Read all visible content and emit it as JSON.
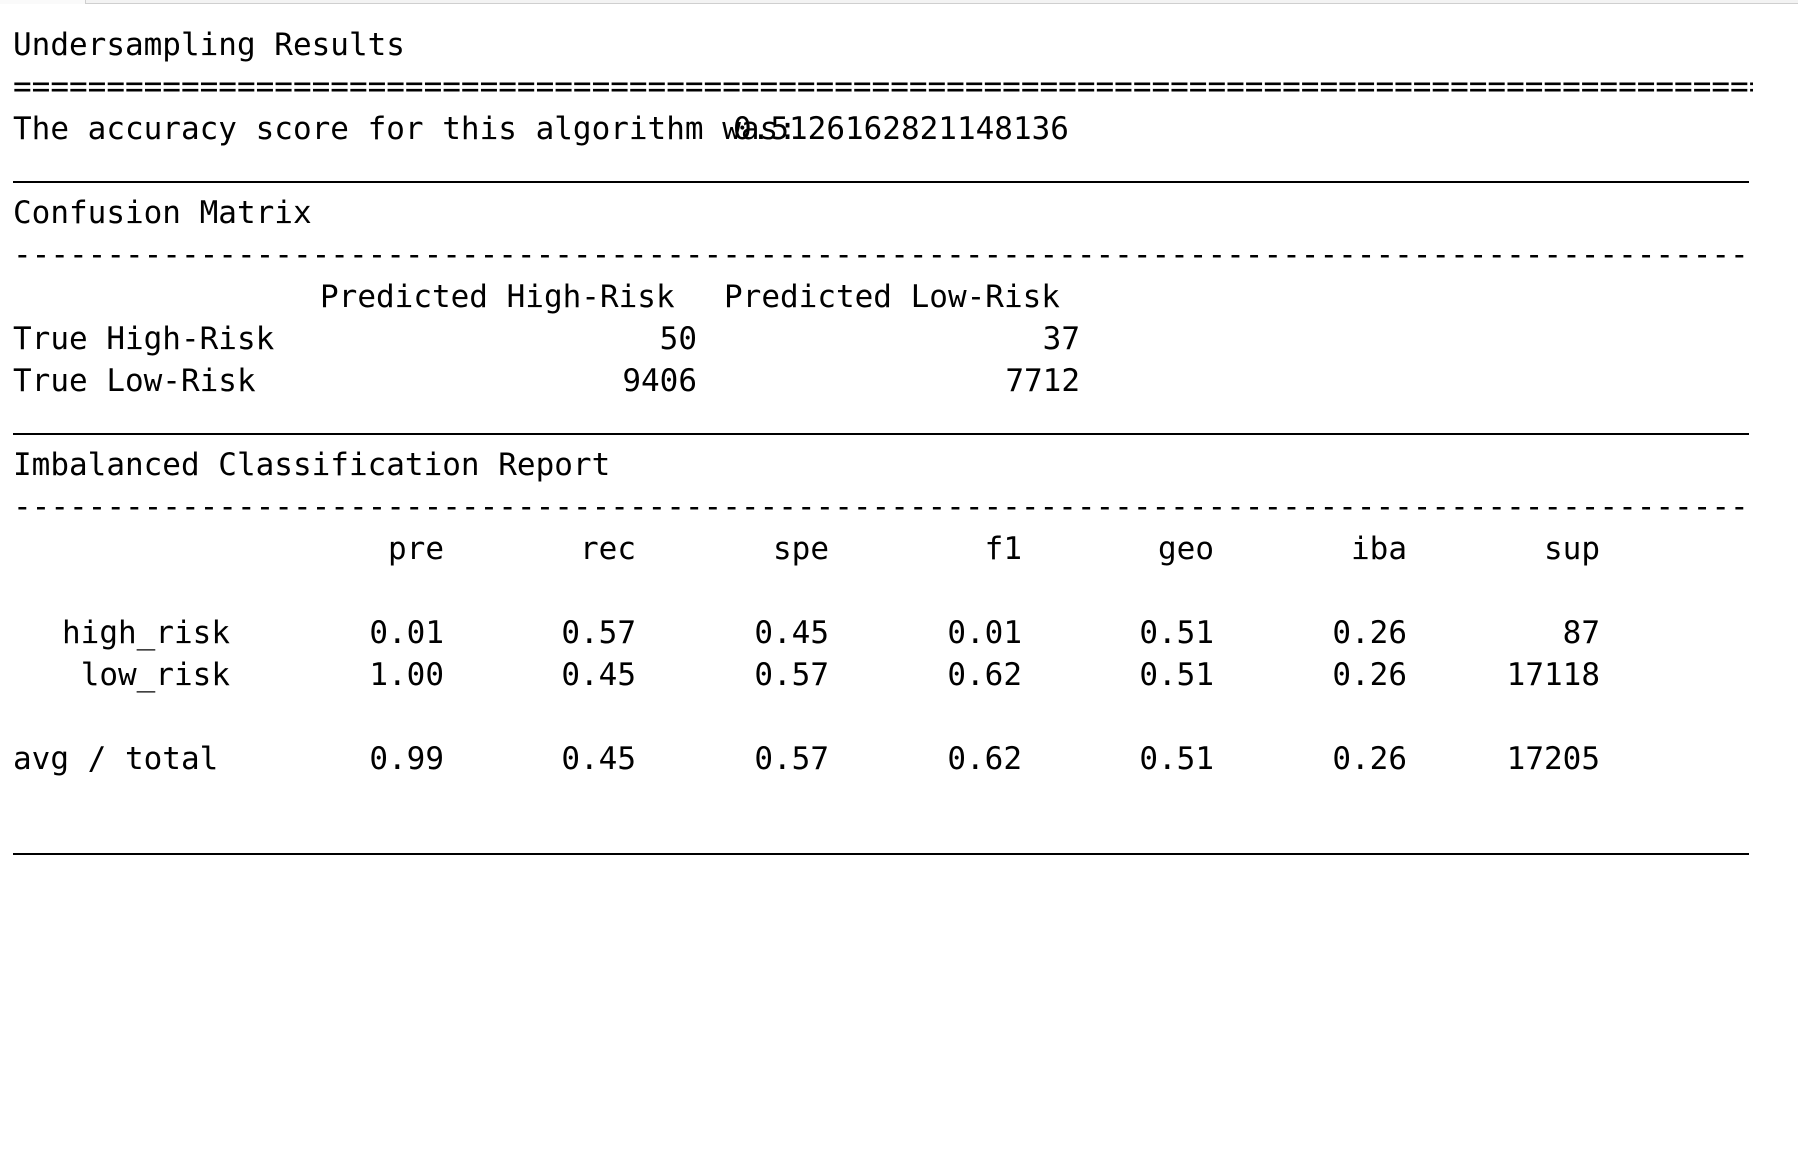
{
  "report": {
    "title": "Undersampling Results",
    "double_rule": "===================================================================================================",
    "accuracy_label": "The accuracy score for this algorithm was:",
    "accuracy_value": "0.5126162821148136",
    "confusion": {
      "heading": "Confusion Matrix",
      "dash_rule": "---------------------------------------------------------------------------------------------------",
      "columns": [
        "Predicted High-Risk",
        "Predicted Low-Risk"
      ],
      "rows": [
        {
          "label": "True High-Risk",
          "values": [
            "50",
            "37"
          ]
        },
        {
          "label": "True Low-Risk",
          "values": [
            "9406",
            "7712"
          ]
        }
      ]
    },
    "classification": {
      "heading": "Imbalanced Classification Report",
      "dash_rule": "---------------------------------------------------------------------------------------------------",
      "columns": [
        "pre",
        "rec",
        "spe",
        "f1",
        "geo",
        "iba",
        "sup"
      ],
      "rows": [
        {
          "label": "high_risk",
          "values": [
            "0.01",
            "0.57",
            "0.45",
            "0.01",
            "0.51",
            "0.26",
            "87"
          ]
        },
        {
          "label": "low_risk",
          "values": [
            "1.00",
            "0.45",
            "0.57",
            "0.62",
            "0.51",
            "0.26",
            "17118"
          ]
        }
      ],
      "total": {
        "label": "avg / total",
        "values": [
          "0.99",
          "0.45",
          "0.57",
          "0.62",
          "0.51",
          "0.26",
          "17205"
        ]
      }
    }
  }
}
